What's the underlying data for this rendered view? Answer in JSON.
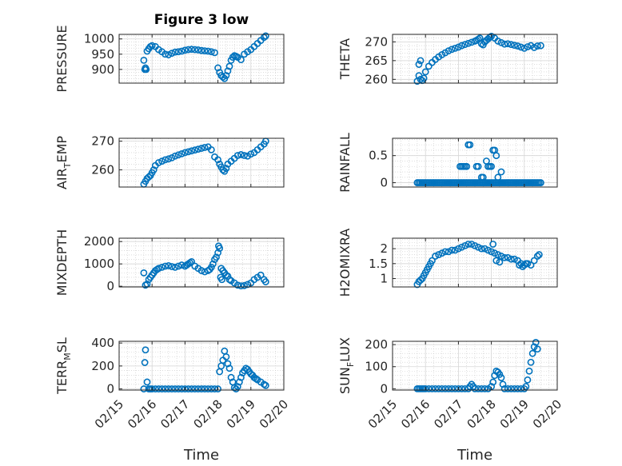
{
  "figure": {
    "title": "Figure 3 low",
    "xlabel": "Time",
    "marker_color": "#0072BD"
  },
  "chart_data": [
    {
      "type": "scatter",
      "title": "Figure 3 low",
      "ylabel": "PRESSURE",
      "sub": "",
      "xlim": [
        15.0,
        20.0
      ],
      "ylim": [
        855,
        1015
      ],
      "yticks": [
        900,
        950,
        1000
      ],
      "xticks": [
        15,
        16,
        17,
        18,
        19,
        20
      ],
      "xticklabels": [
        "02/15",
        "02/16",
        "02/17",
        "02/18",
        "02/19",
        "02/20"
      ],
      "show_xticklabels": false,
      "x": [
        15.75,
        15.8,
        15.85,
        15.9,
        15.95,
        16.0,
        16.1,
        16.2,
        16.3,
        16.4,
        16.5,
        16.6,
        16.7,
        16.8,
        16.9,
        17.0,
        17.1,
        17.2,
        17.3,
        17.4,
        17.5,
        17.6,
        17.7,
        17.8,
        17.9,
        18.0,
        18.05,
        18.1,
        18.15,
        18.2,
        18.25,
        18.3,
        18.35,
        18.4,
        18.45,
        18.5,
        18.55,
        18.6,
        18.7,
        18.8,
        18.9,
        19.0,
        19.1,
        19.2,
        19.3,
        19.4,
        19.45,
        15.78,
        15.82
      ],
      "y": [
        930,
        905,
        960,
        968,
        975,
        978,
        975,
        965,
        958,
        950,
        948,
        953,
        957,
        958,
        960,
        963,
        965,
        966,
        965,
        964,
        962,
        961,
        960,
        958,
        955,
        905,
        890,
        880,
        875,
        870,
        880,
        895,
        910,
        930,
        940,
        945,
        943,
        940,
        932,
        950,
        958,
        965,
        975,
        985,
        995,
        1005,
        1010,
        900,
        900
      ]
    },
    {
      "type": "scatter",
      "title": "",
      "ylabel": "THETA",
      "sub": "",
      "xlim": [
        15.0,
        20.0
      ],
      "ylim": [
        259,
        272
      ],
      "yticks": [
        260,
        265,
        270
      ],
      "xticks": [
        15,
        16,
        17,
        18,
        19,
        20
      ],
      "xticklabels": [
        "02/15",
        "02/16",
        "02/17",
        "02/18",
        "02/19",
        "02/20"
      ],
      "show_xticklabels": false,
      "x": [
        15.75,
        15.8,
        15.85,
        15.9,
        15.95,
        16.0,
        16.1,
        16.2,
        16.3,
        16.4,
        16.5,
        16.6,
        16.7,
        16.8,
        16.9,
        17.0,
        17.1,
        17.2,
        17.3,
        17.4,
        17.5,
        17.55,
        17.6,
        17.65,
        17.7,
        17.75,
        17.8,
        17.85,
        17.9,
        17.95,
        18.0,
        18.1,
        18.2,
        18.3,
        18.4,
        18.5,
        18.6,
        18.7,
        18.8,
        18.9,
        19.0,
        19.1,
        19.2,
        19.3,
        19.4,
        19.5,
        15.8,
        15.85
      ],
      "y": [
        259.5,
        261,
        260,
        259.7,
        260.3,
        262,
        263.5,
        264.5,
        265.3,
        266,
        266.6,
        267.1,
        267.6,
        268,
        268.3,
        268.6,
        269,
        269.3,
        269.6,
        269.9,
        270.2,
        270.4,
        270.7,
        271,
        269.5,
        269.2,
        270,
        270.4,
        270.8,
        271.2,
        271.5,
        271,
        270.2,
        269.8,
        269.4,
        269.5,
        269.3,
        269.1,
        268.9,
        268.6,
        268.3,
        268.7,
        269,
        268.5,
        268.9,
        269,
        264,
        265
      ]
    },
    {
      "type": "scatter",
      "title": "",
      "ylabel": "AIR",
      "sub": "T",
      "ylabel_suffix": "EMP",
      "xlim": [
        15.0,
        20.0
      ],
      "ylim": [
        254,
        271
      ],
      "yticks": [
        260,
        270
      ],
      "xticks": [
        15,
        16,
        17,
        18,
        19,
        20
      ],
      "xticklabels": [
        "02/15",
        "02/16",
        "02/17",
        "02/18",
        "02/19",
        "02/20"
      ],
      "show_xticklabels": false,
      "x": [
        15.75,
        15.8,
        15.85,
        15.9,
        15.95,
        16.0,
        16.05,
        16.1,
        16.2,
        16.3,
        16.4,
        16.5,
        16.6,
        16.7,
        16.8,
        16.9,
        17.0,
        17.1,
        17.2,
        17.3,
        17.4,
        17.5,
        17.6,
        17.7,
        17.8,
        17.9,
        18.0,
        18.05,
        18.1,
        18.15,
        18.2,
        18.25,
        18.3,
        18.4,
        18.5,
        18.6,
        18.7,
        18.8,
        18.9,
        19.0,
        19.1,
        19.2,
        19.3,
        19.4,
        19.45
      ],
      "y": [
        255,
        256,
        257,
        257.5,
        258,
        259,
        260,
        261.5,
        262.5,
        263,
        263.5,
        263.8,
        264.2,
        264.8,
        265.2,
        265.6,
        266,
        266.3,
        266.6,
        266.9,
        267.2,
        267.5,
        267.8,
        268,
        267,
        264.5,
        263.5,
        262,
        261,
        260,
        259.5,
        260.5,
        262,
        263,
        264,
        265,
        265.3,
        265,
        264.8,
        265.5,
        266,
        267,
        268,
        269,
        270
      ]
    },
    {
      "type": "scatter",
      "title": "",
      "ylabel": "RAINFALL",
      "sub": "",
      "xlim": [
        15.0,
        20.0
      ],
      "ylim": [
        -0.08,
        0.82
      ],
      "yticks": [
        0,
        0.5
      ],
      "xticks": [
        15,
        16,
        17,
        18,
        19,
        20
      ],
      "xticklabels": [
        "02/15",
        "02/16",
        "02/17",
        "02/18",
        "02/19",
        "02/20"
      ],
      "show_xticklabels": false,
      "x": [
        15.75,
        15.8,
        15.85,
        15.9,
        15.95,
        16.0,
        16.05,
        16.1,
        16.15,
        16.2,
        16.25,
        16.3,
        16.35,
        16.4,
        16.45,
        16.5,
        16.55,
        16.6,
        16.65,
        16.7,
        16.75,
        16.8,
        16.85,
        16.9,
        16.95,
        17.0,
        17.05,
        17.1,
        17.15,
        17.2,
        17.25,
        17.3,
        17.35,
        17.4,
        17.45,
        17.5,
        17.55,
        17.6,
        17.65,
        17.7,
        17.75,
        17.8,
        17.85,
        17.9,
        17.95,
        18.0,
        18.05,
        18.1,
        18.15,
        18.2,
        18.25,
        18.3,
        18.35,
        18.4,
        18.45,
        18.5,
        18.55,
        18.6,
        18.65,
        18.7,
        18.75,
        18.8,
        18.85,
        18.9,
        18.95,
        19.0,
        19.05,
        19.1,
        19.15,
        19.2,
        19.25,
        19.3,
        19.35,
        19.4,
        19.45,
        19.5,
        17.05,
        17.1,
        17.15,
        17.3,
        17.35,
        17.55,
        17.6,
        17.7,
        17.75,
        17.85,
        17.9,
        17.95,
        18.0,
        18.05,
        18.1,
        18.15,
        18.2,
        18.3,
        17.2,
        17.25
      ],
      "y": [
        0,
        0,
        0,
        0,
        0,
        0,
        0,
        0,
        0,
        0,
        0,
        0,
        0,
        0,
        0,
        0,
        0,
        0,
        0,
        0,
        0,
        0,
        0,
        0,
        0,
        0,
        0,
        0,
        0,
        0,
        0,
        0,
        0,
        0,
        0,
        0,
        0,
        0,
        0,
        0,
        0,
        0,
        0,
        0,
        0,
        0,
        0,
        0,
        0,
        0,
        0,
        0,
        0,
        0,
        0,
        0,
        0,
        0,
        0,
        0,
        0,
        0,
        0,
        0,
        0,
        0,
        0,
        0,
        0,
        0,
        0,
        0,
        0,
        0,
        0,
        0,
        0.3,
        0.3,
        0.3,
        0.7,
        0.7,
        0.3,
        0.3,
        0.1,
        0.1,
        0.4,
        0.3,
        0.3,
        0.3,
        0.6,
        0.6,
        0.5,
        0.1,
        0.2,
        0.3,
        0.3
      ]
    },
    {
      "type": "scatter",
      "title": "",
      "ylabel": "MIXDEPTH",
      "sub": "",
      "xlim": [
        15.0,
        20.0
      ],
      "ylim": [
        -30,
        2150
      ],
      "yticks": [
        0,
        1000,
        2000
      ],
      "xticks": [
        15,
        16,
        17,
        18,
        19,
        20
      ],
      "xticklabels": [
        "02/15",
        "02/16",
        "02/17",
        "02/18",
        "02/19",
        "02/20"
      ],
      "show_xticklabels": false,
      "x": [
        15.75,
        15.8,
        15.85,
        15.9,
        15.95,
        16.0,
        16.05,
        16.1,
        16.15,
        16.2,
        16.3,
        16.4,
        16.5,
        16.6,
        16.7,
        16.8,
        16.9,
        17.0,
        17.05,
        17.1,
        17.15,
        17.2,
        17.3,
        17.4,
        17.5,
        17.6,
        17.7,
        17.75,
        17.8,
        17.85,
        17.9,
        17.95,
        18.0,
        18.02,
        18.05,
        18.1,
        18.15,
        18.2,
        18.25,
        18.3,
        18.35,
        18.4,
        18.5,
        18.6,
        18.7,
        18.8,
        18.9,
        19.0,
        19.1,
        19.2,
        19.3,
        19.4,
        19.45,
        18.08,
        18.12
      ],
      "y": [
        600,
        50,
        100,
        300,
        400,
        500,
        600,
        700,
        750,
        800,
        850,
        900,
        920,
        880,
        850,
        900,
        950,
        900,
        950,
        1000,
        1050,
        1100,
        900,
        800,
        700,
        650,
        700,
        750,
        850,
        1000,
        1200,
        1300,
        1500,
        1800,
        1700,
        800,
        700,
        600,
        500,
        450,
        300,
        250,
        150,
        50,
        20,
        30,
        80,
        150,
        300,
        400,
        500,
        300,
        200,
        400,
        300
      ]
    },
    {
      "type": "scatter",
      "title": "",
      "ylabel": "H2OMIXRA",
      "sub": "",
      "xlim": [
        15.0,
        20.0
      ],
      "ylim": [
        0.72,
        2.35
      ],
      "yticks": [
        1,
        1.5,
        2
      ],
      "xticks": [
        15,
        16,
        17,
        18,
        19,
        20
      ],
      "xticklabels": [
        "02/15",
        "02/16",
        "02/17",
        "02/18",
        "02/19",
        "02/20"
      ],
      "show_xticklabels": false,
      "x": [
        15.75,
        15.8,
        15.85,
        15.9,
        15.95,
        16.0,
        16.05,
        16.1,
        16.15,
        16.2,
        16.3,
        16.4,
        16.5,
        16.6,
        16.7,
        16.8,
        16.9,
        17.0,
        17.1,
        17.2,
        17.3,
        17.4,
        17.5,
        17.6,
        17.7,
        17.8,
        17.9,
        18.0,
        18.05,
        18.1,
        18.2,
        18.3,
        18.4,
        18.5,
        18.6,
        18.7,
        18.8,
        18.85,
        18.9,
        18.95,
        19.0,
        19.05,
        19.1,
        19.2,
        19.3,
        19.4,
        19.45,
        18.15,
        18.25
      ],
      "y": [
        0.8,
        0.9,
        0.95,
        1.0,
        1.1,
        1.2,
        1.3,
        1.4,
        1.5,
        1.6,
        1.75,
        1.8,
        1.85,
        1.9,
        1.9,
        1.95,
        1.95,
        2.0,
        2.05,
        2.1,
        2.15,
        2.15,
        2.1,
        2.05,
        2.0,
        2.0,
        1.95,
        1.9,
        2.15,
        1.85,
        1.8,
        1.75,
        1.7,
        1.7,
        1.65,
        1.65,
        1.6,
        1.45,
        1.5,
        1.4,
        1.45,
        1.5,
        1.5,
        1.45,
        1.6,
        1.75,
        1.8,
        1.6,
        1.55
      ]
    },
    {
      "type": "scatter",
      "title": "",
      "ylabel": "TERR",
      "sub": "M",
      "ylabel_suffix": "SL",
      "xlim": [
        15.0,
        20.0
      ],
      "ylim": [
        -10,
        415
      ],
      "yticks": [
        0,
        200,
        400
      ],
      "xticks": [
        15,
        16,
        17,
        18,
        19,
        20
      ],
      "xticklabels": [
        "02/15",
        "02/16",
        "02/17",
        "02/18",
        "02/19",
        "02/20"
      ],
      "show_xticklabels": true,
      "x": [
        15.75,
        15.78,
        15.8,
        15.85,
        15.9,
        15.95,
        16.0,
        16.1,
        16.2,
        16.3,
        16.4,
        16.5,
        16.6,
        16.7,
        16.8,
        16.9,
        17.0,
        17.1,
        17.2,
        17.3,
        17.4,
        17.5,
        17.6,
        17.7,
        17.8,
        17.9,
        18.0,
        18.05,
        18.1,
        18.15,
        18.2,
        18.25,
        18.3,
        18.35,
        18.4,
        18.45,
        18.5,
        18.55,
        18.6,
        18.65,
        18.7,
        18.75,
        18.8,
        18.85,
        18.9,
        18.95,
        19.0,
        19.05,
        19.1,
        19.15,
        19.2,
        19.3,
        19.4,
        19.45
      ],
      "y": [
        0,
        230,
        340,
        60,
        0,
        0,
        0,
        0,
        0,
        0,
        0,
        0,
        0,
        0,
        0,
        0,
        0,
        0,
        0,
        0,
        0,
        0,
        0,
        0,
        0,
        0,
        0,
        150,
        200,
        250,
        330,
        280,
        220,
        180,
        100,
        60,
        10,
        0,
        20,
        60,
        100,
        140,
        160,
        180,
        170,
        150,
        130,
        120,
        100,
        90,
        80,
        60,
        40,
        30
      ]
    },
    {
      "type": "scatter",
      "title": "",
      "ylabel": "SUN",
      "sub": "F",
      "ylabel_suffix": "LUX",
      "xlim": [
        15.0,
        20.0
      ],
      "ylim": [
        -6,
        215
      ],
      "yticks": [
        0,
        100,
        200
      ],
      "xticks": [
        15,
        16,
        17,
        18,
        19,
        20
      ],
      "xticklabels": [
        "02/15",
        "02/16",
        "02/17",
        "02/18",
        "02/19",
        "02/20"
      ],
      "show_xticklabels": true,
      "x": [
        15.75,
        15.8,
        15.85,
        15.9,
        15.95,
        16.0,
        16.1,
        16.2,
        16.3,
        16.4,
        16.5,
        16.6,
        16.7,
        16.8,
        16.9,
        17.0,
        17.1,
        17.2,
        17.3,
        17.35,
        17.4,
        17.45,
        17.5,
        17.6,
        17.7,
        17.8,
        17.9,
        18.0,
        18.05,
        18.1,
        18.15,
        18.2,
        18.25,
        18.3,
        18.35,
        18.4,
        18.5,
        18.6,
        18.7,
        18.8,
        18.9,
        19.0,
        19.05,
        19.1,
        19.15,
        19.2,
        19.25,
        19.3,
        19.35,
        19.4
      ],
      "y": [
        0,
        0,
        0,
        0,
        0,
        0,
        0,
        0,
        0,
        0,
        0,
        0,
        0,
        0,
        0,
        0,
        0,
        0,
        0,
        10,
        20,
        10,
        0,
        0,
        0,
        0,
        0,
        10,
        30,
        60,
        80,
        75,
        65,
        50,
        20,
        0,
        0,
        0,
        0,
        0,
        0,
        0,
        10,
        40,
        80,
        120,
        160,
        190,
        210,
        180
      ]
    }
  ]
}
